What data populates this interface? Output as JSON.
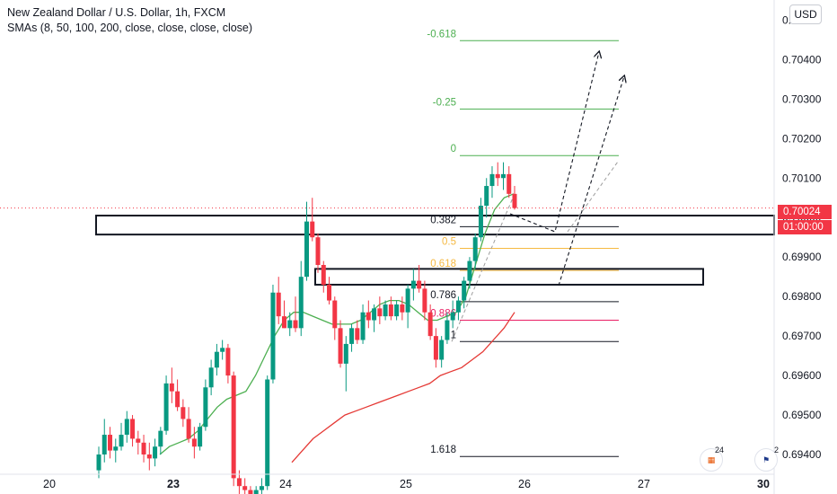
{
  "header": {
    "symbol_title": "New Zealand Dollar / U.S. Dollar, 1h, FXCM",
    "indicator": "SMAs (8, 50, 100, 200, close, close, close, close)",
    "currency_button": "USD"
  },
  "price_tag": {
    "price": "0.70024",
    "countdown": "01:00:00"
  },
  "badges": {
    "events_a": "24",
    "events_b": "2"
  },
  "chart_data": {
    "type": "candlestick",
    "title": "New Zealand Dollar / U.S. Dollar, 1h, FXCM",
    "xlabel": "",
    "ylabel": "",
    "x_ticks": [
      {
        "label": "20",
        "bold": false
      },
      {
        "label": "23",
        "bold": true
      },
      {
        "label": "24",
        "bold": false
      },
      {
        "label": "25",
        "bold": false
      },
      {
        "label": "26",
        "bold": false
      },
      {
        "label": "27",
        "bold": false
      },
      {
        "label": "30",
        "bold": true
      }
    ],
    "y_ticks": [
      "0.70500",
      "0.70400",
      "0.70300",
      "0.70200",
      "0.70100",
      "0.70000",
      "0.69900",
      "0.69800",
      "0.69700",
      "0.69600",
      "0.69500",
      "0.69400"
    ],
    "ylim": [
      0.6935,
      0.7051
    ],
    "last_price": 0.70024,
    "fib_levels": [
      {
        "label": "-0.618",
        "price": 0.70448,
        "color": "#4caf50"
      },
      {
        "label": "-0.25",
        "price": 0.70275,
        "color": "#4caf50"
      },
      {
        "label": "0",
        "price": 0.70157,
        "color": "#4caf50"
      },
      {
        "label": "0.382",
        "price": 0.69977,
        "color": "#131722"
      },
      {
        "label": "0.5",
        "price": 0.69922,
        "color": "#f5b942"
      },
      {
        "label": "0.618",
        "price": 0.69866,
        "color": "#f5b942"
      },
      {
        "label": "0.786",
        "price": 0.69787,
        "color": "#131722"
      },
      {
        "label": "0.886",
        "price": 0.6974,
        "color": "#e91e63"
      },
      {
        "label": "1",
        "price": 0.69686,
        "color": "#131722"
      },
      {
        "label": "1.618",
        "price": 0.69395,
        "color": "#131722"
      }
    ],
    "zones": [
      {
        "price_high": 0.70005,
        "price_low": 0.69957
      },
      {
        "price_high": 0.6987,
        "price_low": 0.6983
      }
    ],
    "candles": [
      [
        0.6936,
        0.6942,
        0.6934,
        0.694
      ],
      [
        0.694,
        0.6949,
        0.6938,
        0.6945
      ],
      [
        0.6945,
        0.6947,
        0.6939,
        0.6941
      ],
      [
        0.6941,
        0.6944,
        0.6938,
        0.6942
      ],
      [
        0.6942,
        0.6948,
        0.6941,
        0.6945
      ],
      [
        0.6945,
        0.6951,
        0.6943,
        0.6949
      ],
      [
        0.6949,
        0.695,
        0.6942,
        0.6944
      ],
      [
        0.6944,
        0.6946,
        0.694,
        0.6943
      ],
      [
        0.6943,
        0.6945,
        0.6938,
        0.694
      ],
      [
        0.694,
        0.6943,
        0.6936,
        0.6939
      ],
      [
        0.6939,
        0.6944,
        0.6937,
        0.6942
      ],
      [
        0.6942,
        0.6947,
        0.694,
        0.6946
      ],
      [
        0.6946,
        0.696,
        0.6945,
        0.6958
      ],
      [
        0.6958,
        0.6962,
        0.6953,
        0.6956
      ],
      [
        0.6956,
        0.6959,
        0.6951,
        0.6952
      ],
      [
        0.6952,
        0.6954,
        0.6947,
        0.6949
      ],
      [
        0.6949,
        0.6952,
        0.6943,
        0.6944
      ],
      [
        0.6944,
        0.6947,
        0.6939,
        0.6942
      ],
      [
        0.6942,
        0.6948,
        0.6941,
        0.6947
      ],
      [
        0.6947,
        0.6959,
        0.6946,
        0.6957
      ],
      [
        0.6957,
        0.6964,
        0.6955,
        0.6962
      ],
      [
        0.6962,
        0.6968,
        0.696,
        0.6966
      ],
      [
        0.6966,
        0.6969,
        0.6964,
        0.6967
      ],
      [
        0.6967,
        0.6968,
        0.6958,
        0.696
      ],
      [
        0.696,
        0.6961,
        0.6932,
        0.6934
      ],
      [
        0.6934,
        0.6936,
        0.693,
        0.6932
      ],
      [
        0.6932,
        0.6934,
        0.6929,
        0.6931
      ],
      [
        0.6931,
        0.6932,
        0.6928,
        0.693
      ],
      [
        0.693,
        0.6932,
        0.6928,
        0.6931
      ],
      [
        0.6931,
        0.6934,
        0.6929,
        0.6932
      ],
      [
        0.6932,
        0.696,
        0.6931,
        0.6959
      ],
      [
        0.6959,
        0.6983,
        0.6958,
        0.6981
      ],
      [
        0.6981,
        0.6985,
        0.6973,
        0.6975
      ],
      [
        0.6975,
        0.6979,
        0.6972,
        0.6972
      ],
      [
        0.6972,
        0.6976,
        0.697,
        0.6974
      ],
      [
        0.6974,
        0.698,
        0.6971,
        0.6972
      ],
      [
        0.6972,
        0.6989,
        0.697,
        0.6985
      ],
      [
        0.6985,
        0.7004,
        0.6984,
        0.6999
      ],
      [
        0.6999,
        0.7005,
        0.6994,
        0.6995
      ],
      [
        0.6995,
        0.6996,
        0.6986,
        0.6988
      ],
      [
        0.6988,
        0.6989,
        0.6981,
        0.6983
      ],
      [
        0.6983,
        0.6985,
        0.6978,
        0.6979
      ],
      [
        0.6979,
        0.698,
        0.6969,
        0.6972
      ],
      [
        0.6972,
        0.6974,
        0.6962,
        0.6963
      ],
      [
        0.6963,
        0.697,
        0.6956,
        0.6968
      ],
      [
        0.6968,
        0.6973,
        0.6966,
        0.6972
      ],
      [
        0.6972,
        0.6974,
        0.6968,
        0.6969
      ],
      [
        0.6969,
        0.6978,
        0.6968,
        0.6976
      ],
      [
        0.6976,
        0.6979,
        0.6972,
        0.6974
      ],
      [
        0.6974,
        0.6978,
        0.6971,
        0.6977
      ],
      [
        0.6977,
        0.698,
        0.6973,
        0.6975
      ],
      [
        0.6975,
        0.6979,
        0.6974,
        0.6978
      ],
      [
        0.6978,
        0.698,
        0.6974,
        0.6975
      ],
      [
        0.6975,
        0.6979,
        0.6974,
        0.6978
      ],
      [
        0.6978,
        0.698,
        0.6974,
        0.6976
      ],
      [
        0.6976,
        0.6983,
        0.6972,
        0.6982
      ],
      [
        0.6982,
        0.6987,
        0.6979,
        0.6984
      ],
      [
        0.6984,
        0.6988,
        0.6981,
        0.6982
      ],
      [
        0.6982,
        0.6984,
        0.6974,
        0.6976
      ],
      [
        0.6976,
        0.6978,
        0.6969,
        0.697
      ],
      [
        0.697,
        0.6972,
        0.6962,
        0.6964
      ],
      [
        0.6964,
        0.697,
        0.6962,
        0.6969
      ],
      [
        0.6969,
        0.6976,
        0.6968,
        0.6974
      ],
      [
        0.6974,
        0.6979,
        0.6972,
        0.6976
      ],
      [
        0.6976,
        0.698,
        0.6974,
        0.6979
      ],
      [
        0.6979,
        0.6985,
        0.6977,
        0.6984
      ],
      [
        0.6984,
        0.699,
        0.6982,
        0.6989
      ],
      [
        0.6989,
        0.6996,
        0.6987,
        0.6995
      ],
      [
        0.6995,
        0.7005,
        0.6994,
        0.7003
      ],
      [
        0.7003,
        0.701,
        0.7,
        0.7008
      ],
      [
        0.7008,
        0.7013,
        0.7005,
        0.7011
      ],
      [
        0.7011,
        0.7014,
        0.7008,
        0.701
      ],
      [
        0.701,
        0.7014,
        0.7007,
        0.7011
      ],
      [
        0.7011,
        0.7013,
        0.7005,
        0.7006
      ],
      [
        0.7006,
        0.7008,
        0.7002,
        0.70024
      ]
    ],
    "sma_green": [
      0.694,
      0.6942,
      0.6943,
      0.6944,
      0.6946,
      0.6949,
      0.6952,
      0.6954,
      0.6955,
      0.6956,
      0.696,
      0.6965,
      0.697,
      0.6974,
      0.6976,
      0.6976,
      0.6975,
      0.6974,
      0.6973,
      0.6973,
      0.6973,
      0.6974,
      0.6976,
      0.6978,
      0.6979,
      0.6979,
      0.6978,
      0.6976,
      0.6974,
      0.6974,
      0.6975,
      0.6976,
      0.698,
      0.6988,
      0.6996,
      0.7002,
      0.7005,
      0.7006
    ],
    "sma_red": [
      0.6938,
      0.6941,
      0.6944,
      0.6946,
      0.6948,
      0.695,
      0.6951,
      0.6952,
      0.6953,
      0.6954,
      0.6955,
      0.6956,
      0.6957,
      0.6958,
      0.696,
      0.6961,
      0.6962,
      0.6964,
      0.6966,
      0.6969,
      0.6972,
      0.6976
    ]
  }
}
